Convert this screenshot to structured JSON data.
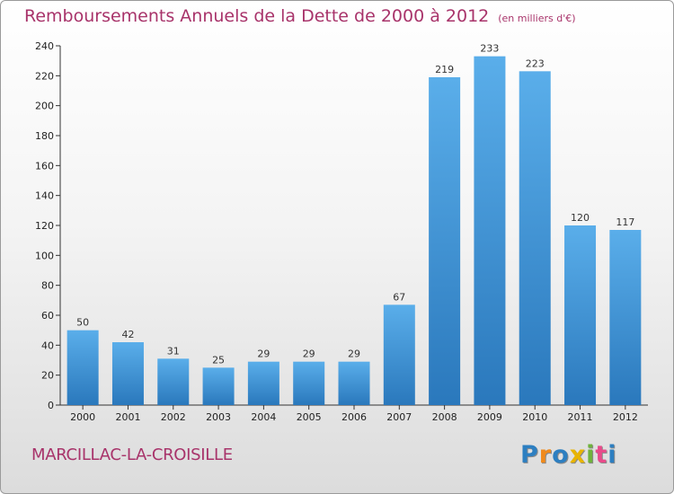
{
  "chart_data": {
    "type": "bar",
    "title": "Remboursements Annuels de la Dette de 2000 à 2012",
    "subtitle": "(en milliers d'€)",
    "categories": [
      "2000",
      "2001",
      "2002",
      "2003",
      "2004",
      "2005",
      "2006",
      "2007",
      "2008",
      "2009",
      "2010",
      "2011",
      "2012"
    ],
    "values": [
      50,
      42,
      31,
      25,
      29,
      29,
      29,
      67,
      219,
      233,
      223,
      120,
      117
    ],
    "ylim": [
      0,
      240
    ],
    "yticks": [
      0,
      20,
      40,
      60,
      80,
      100,
      120,
      140,
      160,
      180,
      200,
      220,
      240
    ],
    "xlabel": "",
    "ylabel": "",
    "grid": false,
    "legend": "none"
  },
  "footer": {
    "city": "MARCILLAC-LA-CROISILLE",
    "logo_letters": [
      "P",
      "r",
      "o",
      "x",
      "i",
      "t",
      "i"
    ]
  },
  "colors": {
    "title": "#a8336a",
    "bar_top": "#5aaeea",
    "bar_bottom": "#2a78bc",
    "axis": "#333333",
    "logo": [
      "#2d7fc1",
      "#f08a1c",
      "#2d7fc1",
      "#e8b400",
      "#6fb23c",
      "#e84b8a",
      "#2d7fc1"
    ]
  }
}
